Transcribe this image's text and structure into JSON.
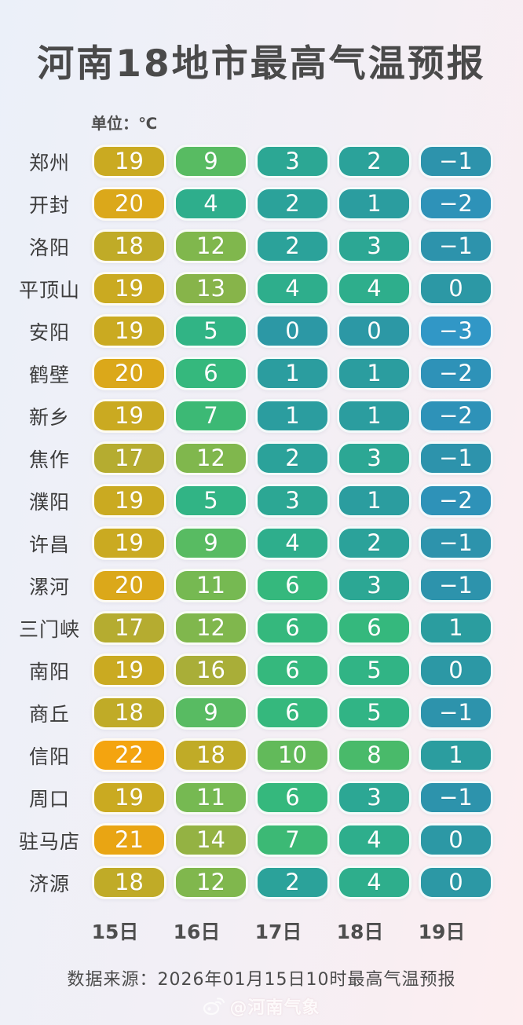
{
  "page": {
    "title": "河南18地市最高气温预报",
    "unit_label": "单位：℃"
  },
  "chart_data": {
    "type": "table",
    "title": "河南18地市最高气温预报",
    "unit": "℃",
    "columns": [
      "15日",
      "16日",
      "17日",
      "18日",
      "19日"
    ],
    "rows": [
      {
        "city": "郑州",
        "values": [
          19,
          9,
          3,
          2,
          -1
        ]
      },
      {
        "city": "开封",
        "values": [
          20,
          4,
          2,
          1,
          -2
        ]
      },
      {
        "city": "洛阳",
        "values": [
          18,
          12,
          2,
          3,
          -1
        ]
      },
      {
        "city": "平顶山",
        "values": [
          19,
          13,
          4,
          4,
          0
        ]
      },
      {
        "city": "安阳",
        "values": [
          19,
          5,
          0,
          0,
          -3
        ]
      },
      {
        "city": "鹤壁",
        "values": [
          20,
          6,
          1,
          1,
          -2
        ]
      },
      {
        "city": "新乡",
        "values": [
          19,
          7,
          1,
          1,
          -2
        ]
      },
      {
        "city": "焦作",
        "values": [
          17,
          12,
          2,
          3,
          -1
        ]
      },
      {
        "city": "濮阳",
        "values": [
          19,
          5,
          3,
          1,
          -2
        ]
      },
      {
        "city": "许昌",
        "values": [
          19,
          9,
          4,
          2,
          -1
        ]
      },
      {
        "city": "漯河",
        "values": [
          20,
          11,
          6,
          3,
          -1
        ]
      },
      {
        "city": "三门峡",
        "values": [
          17,
          12,
          6,
          6,
          1
        ]
      },
      {
        "city": "南阳",
        "values": [
          19,
          16,
          6,
          5,
          0
        ]
      },
      {
        "city": "商丘",
        "values": [
          18,
          9,
          6,
          5,
          -1
        ]
      },
      {
        "city": "信阳",
        "values": [
          22,
          18,
          10,
          8,
          1
        ]
      },
      {
        "city": "周口",
        "values": [
          19,
          11,
          6,
          3,
          -1
        ]
      },
      {
        "city": "驻马店",
        "values": [
          21,
          14,
          7,
          4,
          0
        ]
      },
      {
        "city": "济源",
        "values": [
          18,
          12,
          2,
          4,
          0
        ]
      }
    ],
    "color_scale": {
      "-3": "#3197c6",
      "-2": "#2e92b8",
      "-1": "#2d93ac",
      "0": "#2c98a5",
      "1": "#2b9d9f",
      "2": "#2ba29a",
      "3": "#2ca794",
      "4": "#2eae8c",
      "5": "#31b485",
      "6": "#35b87d",
      "7": "#3cb975",
      "8": "#49ba6a",
      "9": "#58bb62",
      "10": "#62ba5a",
      "11": "#76b952",
      "12": "#80b74d",
      "13": "#87b44a",
      "14": "#94b243",
      "16": "#a9ae38",
      "17": "#b5ac30",
      "18": "#c0ab27",
      "19": "#caaa21",
      "20": "#dba81a",
      "21": "#e9a513",
      "22": "#f4a40f"
    },
    "source": "数据来源：2026年01月15日10时最高气温预报"
  },
  "watermark": {
    "label": "@河南气象"
  },
  "colors": {
    "background_left": "#ebf0f9",
    "background_right": "#fdeef0",
    "title_text": "#4a4a4a",
    "pill_text": "#ffffff",
    "pill_border": "#ffffff"
  }
}
